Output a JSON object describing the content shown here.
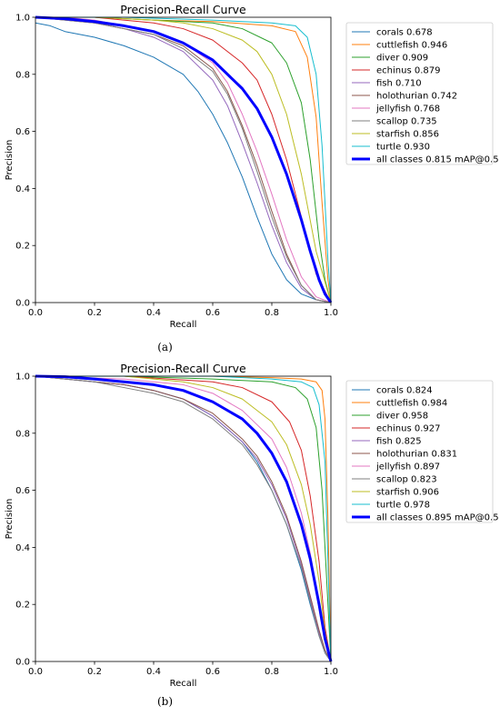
{
  "chart_data": [
    {
      "type": "line",
      "caption": "(a)",
      "title": "Precision-Recall Curve",
      "xlabel": "Recall",
      "ylabel": "Precision",
      "xlim": [
        0.0,
        1.0
      ],
      "ylim": [
        0.0,
        1.0
      ],
      "xticks": [
        "0.0",
        "0.2",
        "0.4",
        "0.6",
        "0.8",
        "1.0"
      ],
      "yticks": [
        "0.0",
        "0.2",
        "0.4",
        "0.6",
        "0.8",
        "1.0"
      ],
      "grid": false,
      "legend_position": "outside-right",
      "series": [
        {
          "name": "corals 0.678",
          "color": "#1f77b4",
          "width": 1,
          "x": [
            0,
            0.05,
            0.1,
            0.2,
            0.3,
            0.4,
            0.5,
            0.55,
            0.6,
            0.65,
            0.7,
            0.75,
            0.8,
            0.85,
            0.9,
            0.95,
            1.0
          ],
          "y": [
            0.98,
            0.97,
            0.95,
            0.93,
            0.9,
            0.86,
            0.8,
            0.74,
            0.66,
            0.56,
            0.44,
            0.3,
            0.17,
            0.08,
            0.03,
            0.01,
            0
          ]
        },
        {
          "name": "cuttlefish 0.946",
          "color": "#ff7f0e",
          "width": 1,
          "x": [
            0,
            0.2,
            0.4,
            0.6,
            0.8,
            0.88,
            0.92,
            0.95,
            0.97,
            0.99,
            1.0
          ],
          "y": [
            1.0,
            1.0,
            0.99,
            0.985,
            0.97,
            0.95,
            0.86,
            0.65,
            0.35,
            0.08,
            0
          ]
        },
        {
          "name": "diver 0.909",
          "color": "#2ca02c",
          "width": 1,
          "x": [
            0,
            0.2,
            0.4,
            0.6,
            0.7,
            0.8,
            0.85,
            0.9,
            0.93,
            0.96,
            0.98,
            1.0
          ],
          "y": [
            1.0,
            1.0,
            0.99,
            0.98,
            0.96,
            0.91,
            0.84,
            0.7,
            0.5,
            0.22,
            0.08,
            0
          ]
        },
        {
          "name": "echinus 0.879",
          "color": "#d62728",
          "width": 1,
          "x": [
            0,
            0.2,
            0.4,
            0.5,
            0.6,
            0.7,
            0.75,
            0.8,
            0.85,
            0.9,
            0.95,
            1.0
          ],
          "y": [
            1.0,
            1.0,
            0.98,
            0.96,
            0.92,
            0.84,
            0.78,
            0.66,
            0.5,
            0.3,
            0.1,
            0
          ]
        },
        {
          "name": "fish 0.710",
          "color": "#9467bd",
          "width": 1,
          "x": [
            0,
            0.1,
            0.2,
            0.3,
            0.4,
            0.5,
            0.6,
            0.65,
            0.7,
            0.75,
            0.8,
            0.85,
            0.9,
            0.95,
            1.0
          ],
          "y": [
            1.0,
            0.99,
            0.98,
            0.96,
            0.93,
            0.88,
            0.78,
            0.69,
            0.56,
            0.42,
            0.27,
            0.14,
            0.05,
            0.01,
            0
          ]
        },
        {
          "name": "holothurian 0.742",
          "color": "#8c564b",
          "width": 1,
          "x": [
            0,
            0.1,
            0.2,
            0.3,
            0.4,
            0.5,
            0.6,
            0.65,
            0.7,
            0.75,
            0.8,
            0.85,
            0.9,
            0.95,
            1.0
          ],
          "y": [
            1.0,
            0.99,
            0.98,
            0.96,
            0.94,
            0.9,
            0.82,
            0.74,
            0.62,
            0.48,
            0.32,
            0.17,
            0.06,
            0.01,
            0
          ]
        },
        {
          "name": "jellyfish 0.768",
          "color": "#e377c2",
          "width": 1,
          "x": [
            0,
            0.1,
            0.2,
            0.3,
            0.4,
            0.5,
            0.6,
            0.65,
            0.7,
            0.75,
            0.8,
            0.85,
            0.9,
            0.95,
            1.0
          ],
          "y": [
            1.0,
            1.0,
            0.99,
            0.97,
            0.95,
            0.91,
            0.84,
            0.77,
            0.66,
            0.53,
            0.38,
            0.22,
            0.09,
            0.02,
            0
          ]
        },
        {
          "name": "scallop 0.735",
          "color": "#7f7f7f",
          "width": 1,
          "x": [
            0,
            0.1,
            0.2,
            0.3,
            0.4,
            0.5,
            0.6,
            0.65,
            0.7,
            0.75,
            0.8,
            0.85,
            0.9,
            0.95,
            1.0
          ],
          "y": [
            1.0,
            0.99,
            0.98,
            0.96,
            0.94,
            0.89,
            0.81,
            0.73,
            0.61,
            0.46,
            0.3,
            0.16,
            0.06,
            0.01,
            0
          ]
        },
        {
          "name": "starfish 0.856",
          "color": "#bcbd22",
          "width": 1,
          "x": [
            0,
            0.2,
            0.4,
            0.5,
            0.6,
            0.7,
            0.75,
            0.8,
            0.85,
            0.9,
            0.95,
            1.0
          ],
          "y": [
            1.0,
            1.0,
            0.99,
            0.98,
            0.96,
            0.92,
            0.88,
            0.8,
            0.66,
            0.45,
            0.18,
            0
          ]
        },
        {
          "name": "turtle 0.930",
          "color": "#17becf",
          "width": 1,
          "x": [
            0,
            0.3,
            0.6,
            0.8,
            0.88,
            0.92,
            0.95,
            0.97,
            0.99,
            1.0
          ],
          "y": [
            1.0,
            1.0,
            0.99,
            0.98,
            0.97,
            0.93,
            0.8,
            0.55,
            0.15,
            0
          ]
        },
        {
          "name": "all classes 0.815 mAP@0.5",
          "color": "#0000ff",
          "width": 3,
          "x": [
            0,
            0.1,
            0.2,
            0.3,
            0.4,
            0.5,
            0.6,
            0.7,
            0.75,
            0.8,
            0.85,
            0.9,
            0.93,
            0.96,
            0.98,
            1.0
          ],
          "y": [
            1.0,
            0.995,
            0.985,
            0.97,
            0.95,
            0.91,
            0.85,
            0.75,
            0.68,
            0.58,
            0.45,
            0.29,
            0.18,
            0.08,
            0.03,
            0
          ]
        }
      ]
    },
    {
      "type": "line",
      "caption": "(b)",
      "title": "Precision-Recall Curve",
      "xlabel": "Recall",
      "ylabel": "Precision",
      "xlim": [
        0.0,
        1.0
      ],
      "ylim": [
        0.0,
        1.0
      ],
      "xticks": [
        "0.0",
        "0.2",
        "0.4",
        "0.6",
        "0.8",
        "1.0"
      ],
      "yticks": [
        "0.0",
        "0.2",
        "0.4",
        "0.6",
        "0.8",
        "1.0"
      ],
      "grid": false,
      "legend_position": "outside-right",
      "series": [
        {
          "name": "corals 0.824",
          "color": "#1f77b4",
          "width": 1,
          "x": [
            0,
            0.1,
            0.2,
            0.3,
            0.4,
            0.5,
            0.6,
            0.7,
            0.75,
            0.8,
            0.85,
            0.9,
            0.93,
            0.96,
            0.98,
            1.0
          ],
          "y": [
            1.0,
            0.99,
            0.98,
            0.97,
            0.95,
            0.92,
            0.86,
            0.77,
            0.7,
            0.6,
            0.48,
            0.32,
            0.2,
            0.09,
            0.03,
            0
          ]
        },
        {
          "name": "cuttlefish 0.984",
          "color": "#ff7f0e",
          "width": 1,
          "x": [
            0,
            0.3,
            0.6,
            0.8,
            0.9,
            0.95,
            0.97,
            0.98,
            0.99,
            1.0
          ],
          "y": [
            1.0,
            1.0,
            1.0,
            0.995,
            0.99,
            0.98,
            0.95,
            0.85,
            0.5,
            0
          ]
        },
        {
          "name": "diver 0.958",
          "color": "#2ca02c",
          "width": 1,
          "x": [
            0,
            0.3,
            0.6,
            0.8,
            0.88,
            0.92,
            0.95,
            0.97,
            0.99,
            1.0
          ],
          "y": [
            1.0,
            1.0,
            0.99,
            0.98,
            0.96,
            0.92,
            0.82,
            0.6,
            0.2,
            0
          ]
        },
        {
          "name": "echinus 0.927",
          "color": "#d62728",
          "width": 1,
          "x": [
            0,
            0.3,
            0.6,
            0.7,
            0.8,
            0.86,
            0.9,
            0.93,
            0.96,
            0.98,
            1.0
          ],
          "y": [
            1.0,
            1.0,
            0.98,
            0.96,
            0.91,
            0.84,
            0.74,
            0.58,
            0.35,
            0.12,
            0
          ]
        },
        {
          "name": "fish 0.825",
          "color": "#9467bd",
          "width": 1,
          "x": [
            0,
            0.1,
            0.2,
            0.3,
            0.4,
            0.5,
            0.6,
            0.7,
            0.75,
            0.8,
            0.85,
            0.9,
            0.93,
            0.96,
            0.98,
            1.0
          ],
          "y": [
            1.0,
            0.99,
            0.98,
            0.97,
            0.95,
            0.92,
            0.86,
            0.77,
            0.71,
            0.62,
            0.5,
            0.34,
            0.22,
            0.1,
            0.04,
            0
          ]
        },
        {
          "name": "holothurian 0.831",
          "color": "#8c564b",
          "width": 1,
          "x": [
            0,
            0.1,
            0.2,
            0.3,
            0.4,
            0.5,
            0.6,
            0.7,
            0.75,
            0.8,
            0.85,
            0.9,
            0.93,
            0.96,
            0.98,
            1.0
          ],
          "y": [
            1.0,
            0.99,
            0.98,
            0.97,
            0.95,
            0.92,
            0.87,
            0.78,
            0.72,
            0.63,
            0.51,
            0.35,
            0.23,
            0.11,
            0.04,
            0
          ]
        },
        {
          "name": "jellyfish 0.897",
          "color": "#e377c2",
          "width": 1,
          "x": [
            0,
            0.3,
            0.5,
            0.6,
            0.7,
            0.8,
            0.85,
            0.9,
            0.93,
            0.96,
            0.98,
            1.0
          ],
          "y": [
            1.0,
            0.99,
            0.97,
            0.94,
            0.88,
            0.78,
            0.68,
            0.52,
            0.38,
            0.2,
            0.08,
            0
          ]
        },
        {
          "name": "scallop 0.823",
          "color": "#7f7f7f",
          "width": 1,
          "x": [
            0,
            0.1,
            0.2,
            0.3,
            0.4,
            0.5,
            0.6,
            0.7,
            0.75,
            0.8,
            0.85,
            0.9,
            0.93,
            0.96,
            0.98,
            1.0
          ],
          "y": [
            1.0,
            0.99,
            0.98,
            0.96,
            0.94,
            0.91,
            0.85,
            0.76,
            0.69,
            0.6,
            0.48,
            0.33,
            0.21,
            0.09,
            0.03,
            0
          ]
        },
        {
          "name": "starfish 0.906",
          "color": "#bcbd22",
          "width": 1,
          "x": [
            0,
            0.3,
            0.5,
            0.6,
            0.7,
            0.8,
            0.85,
            0.9,
            0.93,
            0.96,
            0.98,
            1.0
          ],
          "y": [
            1.0,
            1.0,
            0.98,
            0.96,
            0.92,
            0.84,
            0.76,
            0.62,
            0.48,
            0.28,
            0.1,
            0
          ]
        },
        {
          "name": "turtle 0.978",
          "color": "#17becf",
          "width": 1,
          "x": [
            0,
            0.3,
            0.6,
            0.8,
            0.9,
            0.94,
            0.96,
            0.98,
            0.99,
            1.0
          ],
          "y": [
            1.0,
            1.0,
            1.0,
            0.99,
            0.98,
            0.96,
            0.9,
            0.7,
            0.35,
            0
          ]
        },
        {
          "name": "all classes 0.895 mAP@0.5",
          "color": "#0000ff",
          "width": 3,
          "x": [
            0,
            0.1,
            0.2,
            0.3,
            0.4,
            0.5,
            0.6,
            0.7,
            0.75,
            0.8,
            0.85,
            0.9,
            0.93,
            0.96,
            0.98,
            1.0
          ],
          "y": [
            1.0,
            0.998,
            0.99,
            0.98,
            0.97,
            0.95,
            0.91,
            0.85,
            0.8,
            0.73,
            0.63,
            0.48,
            0.36,
            0.2,
            0.08,
            0
          ]
        }
      ]
    }
  ]
}
